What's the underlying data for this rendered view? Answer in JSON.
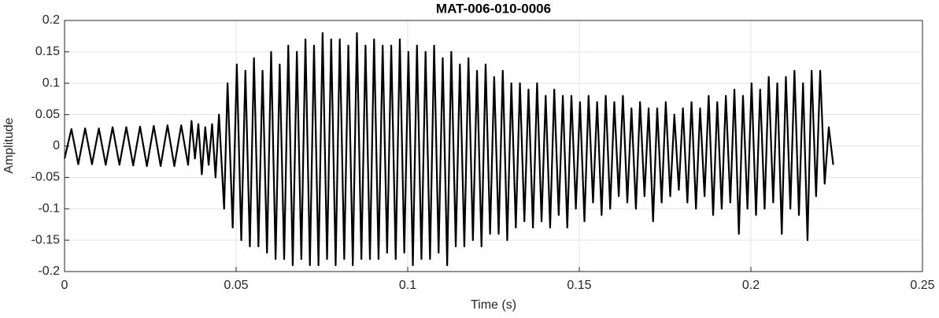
{
  "chart_data": {
    "type": "line",
    "title": "MAT-006-010-0006",
    "xlabel": "Time (s)",
    "ylabel": "Amplitude",
    "color": "#000000",
    "grid": true,
    "xlim": [
      0,
      0.25
    ],
    "ylim": [
      -0.2,
      0.2
    ],
    "xticks": [
      0,
      0.05,
      0.1,
      0.15,
      0.2,
      0.25
    ],
    "yticks": [
      -0.2,
      -0.15,
      -0.1,
      -0.05,
      0,
      0.05,
      0.1,
      0.15,
      0.2
    ],
    "x": [
      0,
      0.002,
      0.004,
      0.006,
      0.008,
      0.01,
      0.012,
      0.014,
      0.016,
      0.018,
      0.02,
      0.022,
      0.024,
      0.026,
      0.028,
      0.03,
      0.032,
      0.034,
      0.036,
      0.037,
      0.038,
      0.039,
      0.04,
      0.041,
      0.042,
      0.043,
      0.044,
      0.045,
      0.0465,
      0.0475,
      0.049,
      0.0502,
      0.0515,
      0.0527,
      0.054,
      0.0552,
      0.0565,
      0.0577,
      0.059,
      0.0602,
      0.0615,
      0.0627,
      0.064,
      0.0652,
      0.0665,
      0.0677,
      0.069,
      0.0702,
      0.0715,
      0.0727,
      0.074,
      0.0752,
      0.0765,
      0.0777,
      0.079,
      0.0802,
      0.0815,
      0.0827,
      0.084,
      0.0852,
      0.0865,
      0.0877,
      0.089,
      0.0902,
      0.0915,
      0.0927,
      0.094,
      0.0952,
      0.0965,
      0.0977,
      0.099,
      0.1002,
      0.1015,
      0.1027,
      0.104,
      0.1052,
      0.1065,
      0.1077,
      0.109,
      0.1102,
      0.1115,
      0.1127,
      0.114,
      0.1152,
      0.1165,
      0.1177,
      0.119,
      0.1202,
      0.1215,
      0.1227,
      0.124,
      0.1252,
      0.1265,
      0.1277,
      0.129,
      0.1302,
      0.1315,
      0.1327,
      0.134,
      0.1352,
      0.1365,
      0.1377,
      0.139,
      0.1402,
      0.1415,
      0.1427,
      0.144,
      0.1452,
      0.1465,
      0.1477,
      0.149,
      0.1502,
      0.1515,
      0.1527,
      0.154,
      0.1552,
      0.1565,
      0.1577,
      0.159,
      0.1602,
      0.1615,
      0.1627,
      0.164,
      0.1652,
      0.1665,
      0.1677,
      0.169,
      0.1702,
      0.1715,
      0.1727,
      0.174,
      0.1752,
      0.1765,
      0.1777,
      0.179,
      0.1802,
      0.1815,
      0.1827,
      0.184,
      0.1852,
      0.1865,
      0.1877,
      0.189,
      0.1902,
      0.1915,
      0.1927,
      0.194,
      0.1952,
      0.1965,
      0.1977,
      0.199,
      0.2002,
      0.2015,
      0.2027,
      0.204,
      0.2052,
      0.2065,
      0.2077,
      0.209,
      0.2102,
      0.2115,
      0.2127,
      0.214,
      0.2152,
      0.2165,
      0.2177,
      0.219,
      0.2202,
      0.2215,
      0.2227,
      0.224
    ],
    "values": [
      -0.02,
      0.027,
      -0.029,
      0.028,
      -0.029,
      0.028,
      -0.03,
      0.03,
      -0.03,
      0.03,
      -0.031,
      0.031,
      -0.032,
      0.032,
      -0.032,
      0.033,
      -0.032,
      0.033,
      -0.03,
      0.04,
      -0.02,
      0.035,
      -0.045,
      0.03,
      -0.03,
      0.035,
      -0.05,
      0.05,
      -0.1,
      0.1,
      -0.13,
      0.13,
      -0.15,
      0.12,
      -0.16,
      0.14,
      -0.16,
      0.12,
      -0.17,
      0.15,
      -0.18,
      0.13,
      -0.18,
      0.16,
      -0.19,
      0.15,
      -0.18,
      0.17,
      -0.19,
      0.16,
      -0.19,
      0.18,
      -0.18,
      0.17,
      -0.19,
      0.17,
      -0.18,
      0.16,
      -0.19,
      0.18,
      -0.18,
      0.16,
      -0.18,
      0.17,
      -0.18,
      0.16,
      -0.17,
      0.16,
      -0.18,
      0.17,
      -0.17,
      0.15,
      -0.19,
      0.16,
      -0.18,
      0.15,
      -0.18,
      0.16,
      -0.17,
      0.14,
      -0.19,
      0.15,
      -0.16,
      0.13,
      -0.16,
      0.14,
      -0.15,
      0.12,
      -0.16,
      0.13,
      -0.14,
      0.11,
      -0.14,
      0.12,
      -0.15,
      0.1,
      -0.13,
      0.1,
      -0.12,
      0.09,
      -0.13,
      0.1,
      -0.12,
      0.08,
      -0.13,
      0.09,
      -0.11,
      0.08,
      -0.13,
      0.08,
      -0.1,
      0.07,
      -0.12,
      0.08,
      -0.09,
      0.07,
      -0.11,
      0.08,
      -0.1,
      0.07,
      -0.08,
      0.08,
      -0.09,
      0.06,
      -0.1,
      0.07,
      -0.08,
      0.06,
      -0.12,
      0.06,
      -0.09,
      0.07,
      -0.08,
      0.05,
      -0.07,
      0.06,
      -0.09,
      0.07,
      -0.1,
      0.06,
      -0.08,
      0.08,
      -0.11,
      0.07,
      -0.1,
      0.08,
      -0.09,
      0.09,
      -0.14,
      0.08,
      -0.1,
      0.1,
      -0.11,
      0.09,
      -0.1,
      0.11,
      -0.09,
      0.1,
      -0.14,
      0.11,
      -0.1,
      0.12,
      -0.11,
      0.1,
      -0.15,
      0.12,
      -0.08,
      0.12,
      -0.06,
      0.03,
      -0.03
    ]
  }
}
